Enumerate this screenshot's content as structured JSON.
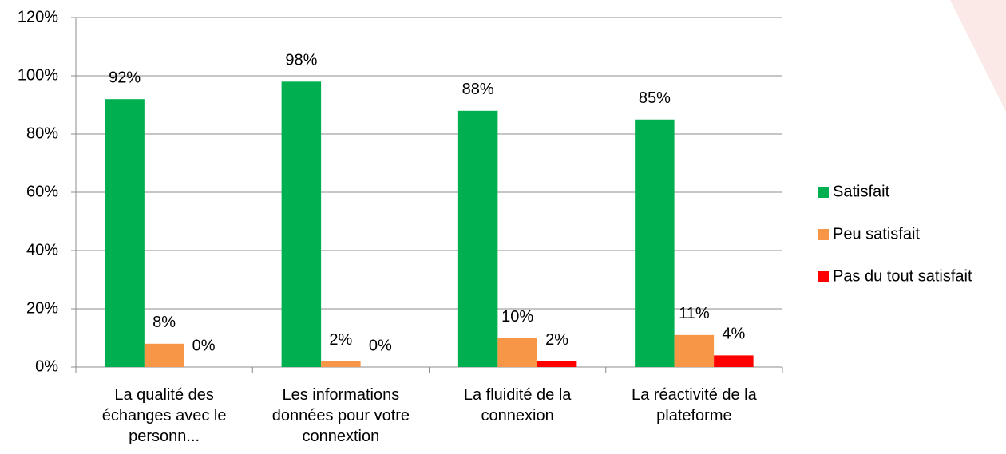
{
  "chart_data": {
    "type": "bar",
    "categories": [
      "La qualité des échanges avec le personn...",
      "Les informations données pour votre connextion",
      "La fluidité de la connexion",
      "La réactivité de la plateforme"
    ],
    "series": [
      {
        "name": "Satisfait",
        "color": "#00b050",
        "values": [
          92,
          98,
          88,
          85
        ],
        "value_labels": [
          "92%",
          "98%",
          "88%",
          "85%"
        ]
      },
      {
        "name": "Peu satisfait",
        "color": "#f79646",
        "values": [
          8,
          2,
          10,
          11
        ],
        "value_labels": [
          "8%",
          "2%",
          "10%",
          "11%"
        ]
      },
      {
        "name": "Pas du tout satisfait",
        "color": "#ff0000",
        "values": [
          0,
          0,
          2,
          4
        ],
        "value_labels": [
          "0%",
          "0%",
          "2%",
          "4%"
        ]
      }
    ],
    "ylim": [
      0,
      120
    ],
    "yticks": [
      {
        "value": 0,
        "label": "0%"
      },
      {
        "value": 20,
        "label": "20%"
      },
      {
        "value": 40,
        "label": "40%"
      },
      {
        "value": 60,
        "label": "60%"
      },
      {
        "value": 80,
        "label": "80%"
      },
      {
        "value": 100,
        "label": "100%"
      },
      {
        "value": 120,
        "label": "120%"
      }
    ],
    "grid": true,
    "legend": "right"
  }
}
